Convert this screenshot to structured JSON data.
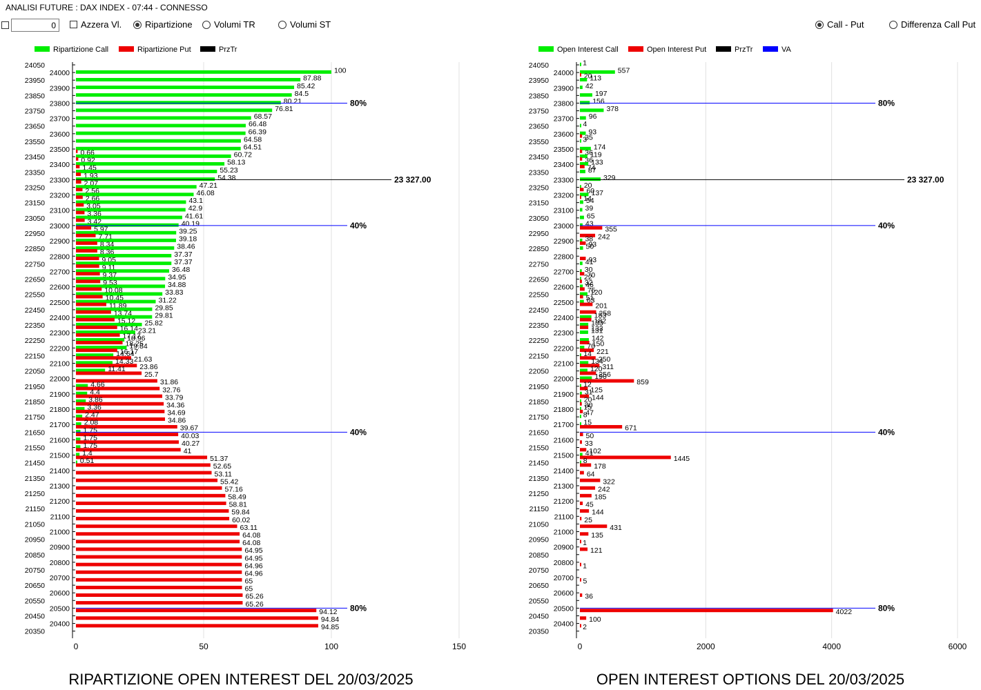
{
  "window": {
    "title": "ANALISI FUTURE : DAX INDEX - 07:44 - CONNESSO"
  },
  "controls": {
    "counter_value": "0",
    "azzera_label": "Azzera Vl.",
    "ripartizione_label": "Ripartizione",
    "volumi_tr_label": "Volumi TR",
    "volumi_st_label": "Volumi ST",
    "call_put_label": "Call - Put",
    "differenza_label": "Differenza Call Put",
    "selected_left": "Ripartizione",
    "selected_right": "Call - Put"
  },
  "colors": {
    "call": "#00ee00",
    "put": "#ee0000",
    "prztr": "#000000",
    "va": "#0000ff",
    "grid": "#e0e0e0"
  },
  "chart_data": [
    {
      "type": "bar",
      "title": "RIPARTIZIONE OPEN INTEREST DEL 20/03/2025",
      "legend": [
        "Ripartizione Call",
        "Ripartizione Put",
        "PrzTr"
      ],
      "xlim": [
        0,
        150
      ],
      "xticks": [
        0,
        50,
        100,
        150
      ],
      "grid": true,
      "ref_lines": [
        {
          "strike": 23800,
          "label": "80%"
        },
        {
          "strike": 23300,
          "label": "23 327.00"
        },
        {
          "strike": 23000,
          "label": "40%"
        },
        {
          "strike": 21650,
          "label": "40%"
        },
        {
          "strike": 20500,
          "label": "80%"
        }
      ],
      "strikes": [
        24050,
        24000,
        23950,
        23900,
        23850,
        23800,
        23750,
        23700,
        23650,
        23600,
        23550,
        23500,
        23450,
        23400,
        23350,
        23300,
        23250,
        23200,
        23150,
        23100,
        23050,
        23000,
        22950,
        22900,
        22850,
        22800,
        22750,
        22700,
        22650,
        22600,
        22550,
        22500,
        22450,
        22400,
        22350,
        22300,
        22250,
        22200,
        22150,
        22100,
        22050,
        22000,
        21950,
        21900,
        21850,
        21800,
        21750,
        21700,
        21650,
        21600,
        21550,
        21500,
        21450,
        21400,
        21350,
        21300,
        21250,
        21200,
        21150,
        21100,
        21050,
        21000,
        20950,
        20900,
        20850,
        20800,
        20750,
        20700,
        20650,
        20600,
        20550,
        20500,
        20450,
        20400,
        20350
      ],
      "series": [
        {
          "name": "Ripartizione Call",
          "values": [
            null,
            100,
            87.88,
            85.42,
            84.5,
            80.21,
            76.81,
            68.57,
            66.48,
            66.39,
            64.58,
            64.51,
            60.72,
            58.13,
            55.23,
            54.38,
            47.21,
            46.08,
            43.1,
            42.9,
            41.61,
            40.19,
            39.25,
            39.18,
            38.46,
            37.37,
            37.37,
            36.48,
            34.95,
            34.88,
            33.83,
            31.22,
            29.85,
            29.81,
            25.82,
            23.21,
            18.96,
            19.84,
            14.64,
            14.33,
            11.41,
            null,
            4.66,
            4.4,
            3.86,
            3.36,
            2.47,
            2.08,
            1.75,
            1.75,
            1.75,
            1.4,
            0.51,
            null,
            null,
            null,
            null,
            null,
            null,
            null,
            null,
            null,
            null,
            null,
            null,
            null,
            null,
            null,
            null,
            null,
            null,
            null,
            null,
            null,
            null
          ]
        },
        {
          "name": "Ripartizione Put",
          "values": [
            null,
            null,
            null,
            null,
            null,
            null,
            null,
            null,
            null,
            null,
            null,
            0.66,
            0.92,
            1.45,
            1.93,
            2.07,
            2.56,
            2.66,
            3.05,
            3.36,
            3.42,
            5.97,
            7.71,
            8.34,
            8.36,
            9.05,
            9.11,
            9.37,
            9.53,
            10.08,
            10.45,
            11.89,
            13.74,
            15.12,
            16.14,
            17.17,
            18.25,
            16.17,
            21.63,
            23.86,
            25.7,
            31.86,
            32.76,
            33.79,
            34.36,
            34.69,
            34.86,
            39.67,
            40.03,
            40.27,
            41,
            51.37,
            52.65,
            53.11,
            55.42,
            57.16,
            58.49,
            58.81,
            59.84,
            60.02,
            63.11,
            64.08,
            64.08,
            64.95,
            64.95,
            64.96,
            64.96,
            65,
            65,
            65.26,
            65.26,
            94.12,
            94.84,
            94.85,
            null
          ]
        }
      ],
      "ylabel": "",
      "xlabel": ""
    },
    {
      "type": "bar",
      "title": "OPEN INTEREST OPTIONS DEL 20/03/2025",
      "legend": [
        "Open Interest Call",
        "Open Interest Put",
        "PrzTr",
        "VA"
      ],
      "xlim": [
        0,
        6000
      ],
      "xticks": [
        0,
        2000,
        4000,
        6000
      ],
      "grid": true,
      "ref_lines": [
        {
          "strike": 23800,
          "label": "80%"
        },
        {
          "strike": 23300,
          "label": "23 327.00"
        },
        {
          "strike": 23000,
          "label": "40%"
        },
        {
          "strike": 21650,
          "label": "40%"
        },
        {
          "strike": 20500,
          "label": "80%"
        }
      ],
      "strikes": [
        24050,
        24000,
        23950,
        23900,
        23850,
        23800,
        23750,
        23700,
        23650,
        23600,
        23550,
        23500,
        23450,
        23400,
        23350,
        23300,
        23250,
        23200,
        23150,
        23100,
        23050,
        23000,
        22950,
        22900,
        22850,
        22800,
        22750,
        22700,
        22650,
        22600,
        22550,
        22500,
        22450,
        22400,
        22350,
        22300,
        22250,
        22200,
        22150,
        22100,
        22050,
        22000,
        21950,
        21900,
        21850,
        21800,
        21750,
        21700,
        21650,
        21600,
        21550,
        21500,
        21450,
        21400,
        21350,
        21300,
        21250,
        21200,
        21150,
        21100,
        21050,
        21000,
        20950,
        20900,
        20850,
        20800,
        20750,
        20700,
        20650,
        20600,
        20550,
        20500,
        20450,
        20400,
        20350
      ],
      "series": [
        {
          "name": "Open Interest Call",
          "values": [
            1,
            557,
            113,
            42,
            197,
            156,
            378,
            96,
            4,
            93,
            3,
            174,
            119,
            133,
            87,
            329,
            20,
            137,
            54,
            39,
            65,
            43,
            null,
            38,
            50,
            null,
            41,
            30,
            22,
            46,
            120,
            63,
            null,
            183,
            133,
            131,
            142,
            70,
            14,
            134,
            120,
            190,
            12,
            31,
            20,
            15,
            8,
            15,
            null,
            null,
            null,
            41,
            8,
            null,
            null,
            null,
            null,
            null,
            null,
            null,
            null,
            null,
            null,
            null,
            null,
            null,
            null,
            null,
            null,
            null,
            null,
            null,
            null,
            null,
            null
          ]
        },
        {
          "name": "Open Interest Put",
          "values": [
            null,
            20,
            null,
            null,
            null,
            null,
            null,
            null,
            null,
            35,
            null,
            36,
            36,
            74,
            null,
            null,
            60,
            14,
            null,
            null,
            null,
            355,
            242,
            93,
            null,
            93,
            null,
            70,
            32,
            75,
            51,
            201,
            258,
            182,
            133,
            null,
            150,
            221,
            250,
            311,
            256,
            859,
            125,
            144,
            30,
            47,
            null,
            671,
            50,
            33,
            102,
            1445,
            178,
            64,
            322,
            242,
            185,
            45,
            144,
            25,
            431,
            135,
            1,
            121,
            null,
            1,
            null,
            5,
            null,
            36,
            null,
            4022,
            100,
            2,
            null
          ]
        }
      ],
      "ylabel": "",
      "xlabel": ""
    }
  ]
}
